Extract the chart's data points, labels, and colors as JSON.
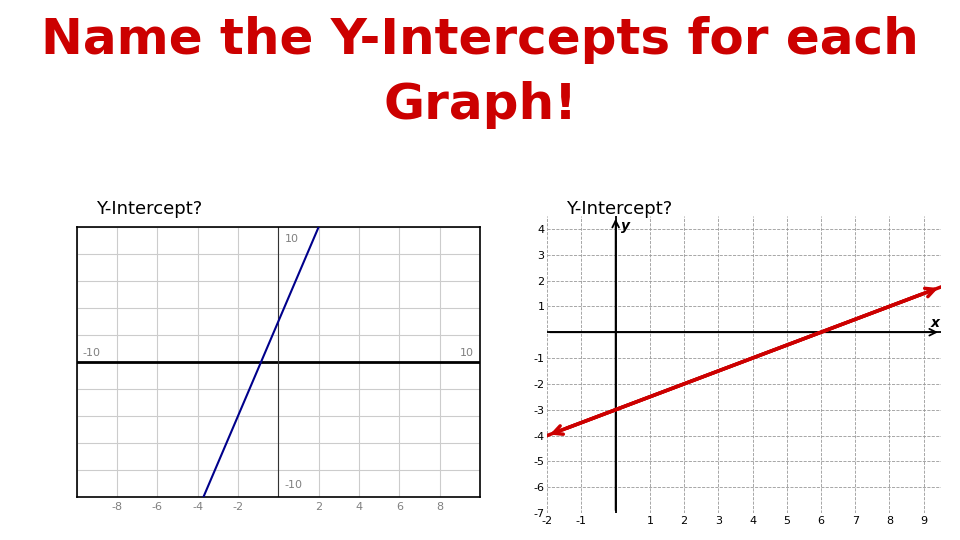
{
  "title_line1": "Name the Y-Intercepts for each",
  "title_line2": "Graph!",
  "title_color": "#cc0000",
  "title_fontsize": 36,
  "title_fontweight": "bold",
  "label1": "Y-Intercept?",
  "label2": "Y-Intercept?",
  "label_fontsize": 13,
  "graph1": {
    "xlim": [
      -10,
      10
    ],
    "ylim": [
      -10,
      10
    ],
    "xticks": [
      -8,
      -6,
      -4,
      -2,
      2,
      4,
      6,
      8
    ],
    "line_color": "#00008B",
    "slope": 3.5,
    "intercept": 3.0,
    "bg_color": "#ffffff",
    "grid_color": "#cccccc",
    "axis_color": "#333333"
  },
  "graph2": {
    "xlim": [
      -2,
      9.5
    ],
    "ylim": [
      -7,
      4.5
    ],
    "xticks": [
      -2,
      -1,
      1,
      2,
      3,
      4,
      5,
      6,
      7,
      8,
      9
    ],
    "yticks": [
      -7,
      -6,
      -5,
      -4,
      -3,
      -2,
      -1,
      1,
      2,
      3,
      4
    ],
    "line_color": "#cc0000",
    "slope": 0.5,
    "intercept": -3.0,
    "xlabel": "x",
    "ylabel": "y",
    "bg_color": "#ffffff",
    "grid_color": "#999999"
  }
}
